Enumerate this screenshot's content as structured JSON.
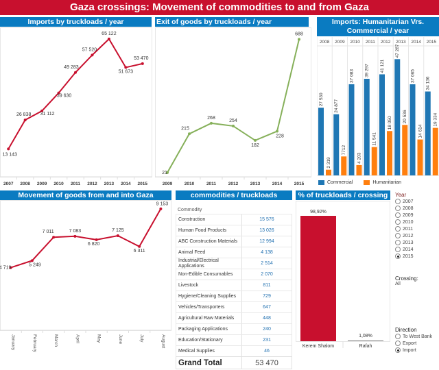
{
  "title": "Gaza crossings: Movement of commodities to and from Gaza",
  "colors": {
    "title_bg": "#c8102e",
    "header_bg": "#0a7bc1",
    "import_line": "#c8102e",
    "export_line": "#86b05a",
    "commercial": "#1f77b4",
    "humanitarian": "#ff7f0e",
    "kerem": "#c8102e",
    "rafah": "#c0c0c0"
  },
  "panels": {
    "imports": "Imports by truckloads / year",
    "exports": "Exit of goods by truckloads / year",
    "hum_com": "Imports: Humanitarian Vrs. Commercial / year",
    "monthly": "Movement of goods from and into Gaza",
    "commodities": "commodities / truckloads",
    "crossing": "% of  truckloads / crossing"
  },
  "chart_data": [
    {
      "type": "line",
      "title": "Imports by truckloads / year",
      "x": [
        "2007",
        "2008",
        "2009",
        "2010",
        "2011",
        "2012",
        "2013",
        "2014",
        "2015"
      ],
      "values": [
        13143,
        26838,
        31112,
        39630,
        49283,
        57520,
        65122,
        51673,
        53470
      ],
      "labels": [
        "13 143",
        "26 838",
        "31 112",
        "39 630",
        "49 283",
        "57 520",
        "65 122",
        "51 673",
        "53 470"
      ],
      "ylim": [
        0,
        68000
      ]
    },
    {
      "type": "line",
      "title": "Exit of goods by truckloads / year",
      "x": [
        "2009",
        "2010",
        "2011",
        "2012",
        "2013",
        "2014",
        "2015"
      ],
      "values": [
        21,
        215,
        268,
        254,
        182,
        228,
        688
      ],
      "labels": [
        "21",
        "215",
        "268",
        "254",
        "182",
        "228",
        "688"
      ],
      "ylim": [
        0,
        720
      ]
    },
    {
      "type": "bar",
      "title": "Imports: Humanitarian Vrs. Commercial / year",
      "categories": [
        "2008",
        "2009",
        "2010",
        "2011",
        "2012",
        "2013",
        "2014",
        "2015"
      ],
      "series": [
        {
          "name": "Commercial",
          "values": [
            27530,
            24877,
            37083,
            39297,
            41121,
            47287,
            37065,
            34136
          ],
          "labels": [
            "27 530",
            "24 877",
            "37 083",
            "39 297",
            "41 121",
            "47 287",
            "37 065",
            "34 136"
          ]
        },
        {
          "name": "Humanitarian",
          "values": [
            2319,
            7712,
            4203,
            11541,
            18050,
            20536,
            14614,
            19334
          ],
          "labels": [
            "2 319",
            "7712",
            "4 203",
            "11 541",
            "18 050",
            "20 536",
            "14 614",
            "19 334"
          ]
        }
      ],
      "ylim": [
        0,
        60000
      ]
    },
    {
      "type": "line",
      "title": "Movement of goods from and into Gaza",
      "x": [
        "January",
        "February",
        "March",
        "April",
        "May",
        "June",
        "July",
        "August"
      ],
      "values": [
        4719,
        5249,
        7011,
        7083,
        6820,
        7125,
        6311,
        9153
      ],
      "labels": [
        "4 719",
        "5 249",
        "7 011",
        "7 083",
        "6 820",
        "7 125",
        "6 311",
        "9 153"
      ],
      "ylim": [
        0,
        9500
      ]
    },
    {
      "type": "table",
      "title": "commodities / truckloads",
      "column_header": "Commodity",
      "rows": [
        {
          "name": "Construction",
          "value": "15 576"
        },
        {
          "name": "Human Food Products",
          "value": "13 026"
        },
        {
          "name": "ABC Construction Materials",
          "value": "12 994"
        },
        {
          "name": "Animal Feed",
          "value": "4 138"
        },
        {
          "name": "Industrial/Electrical Applications",
          "value": "2 514"
        },
        {
          "name": "Non-Edible Consumables",
          "value": "2 070"
        },
        {
          "name": "Livestock",
          "value": "811"
        },
        {
          "name": "Hygiene/Cleaning Supplies",
          "value": "729"
        },
        {
          "name": "Vehicles/Transporters",
          "value": "647"
        },
        {
          "name": "Agricultural Raw Materials",
          "value": "448"
        },
        {
          "name": "Packaging Applications",
          "value": "240"
        },
        {
          "name": "Education/Stationary",
          "value": "231"
        },
        {
          "name": "Medical Supplies",
          "value": "46"
        }
      ],
      "total_label": "Grand Total",
      "total_value": "53 470"
    },
    {
      "type": "bar",
      "title": "% of  truckloads / crossing",
      "categories": [
        "Kerem Shalom",
        "Rafah"
      ],
      "values": [
        98.92,
        1.08
      ],
      "labels": [
        "98,92%",
        "1,08%"
      ],
      "ylim": [
        0,
        100
      ]
    }
  ],
  "legend": {
    "commercial": "Commercial",
    "humanitarian": "Humanitarian"
  },
  "filters": {
    "year_title": "Year",
    "years": [
      "2007",
      "2008",
      "2009",
      "2010",
      "2011",
      "2012",
      "2013",
      "2014",
      "2015"
    ],
    "year_selected": "2015",
    "crossing_title": "Crossing:",
    "crossing_value": "All",
    "direction_title": "Direction",
    "directions": [
      "To West Bank",
      "Export",
      "Import"
    ],
    "direction_selected": "Import"
  }
}
